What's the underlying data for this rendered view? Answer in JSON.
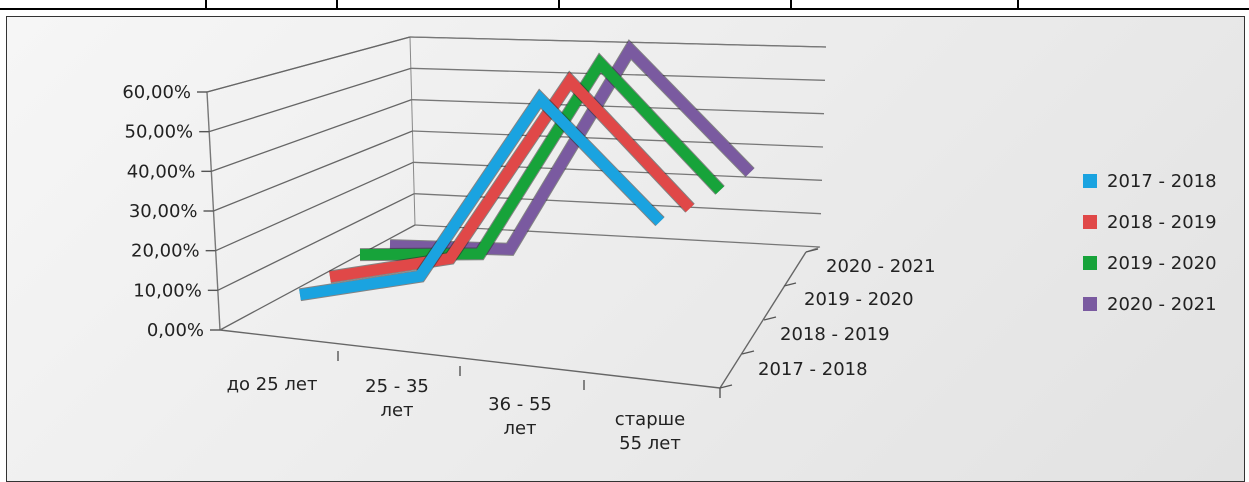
{
  "chart_data": {
    "type": "line",
    "subtype": "3d-line",
    "categories": [
      "до 25 лет",
      "25 - 35 лет",
      "36 - 55 лет",
      "старше 55 лет"
    ],
    "category_lines": [
      [
        "до 25 лет"
      ],
      [
        "25 - 35",
        "лет"
      ],
      [
        "36 - 55",
        "лет"
      ],
      [
        "старше",
        "55 лет"
      ]
    ],
    "depth_categories": [
      "2017 - 2018",
      "2018 - 2019",
      "2019 - 2020",
      "2020 - 2021"
    ],
    "y_ticks": [
      "0,00%",
      "10,00%",
      "20,00%",
      "30,00%",
      "40,00%",
      "50,00%",
      "60,00%"
    ],
    "ylim": [
      0,
      60
    ],
    "series": [
      {
        "name": "2017 - 2018",
        "color": "#1aa3e0",
        "values": [
          3,
          9,
          51,
          25
        ]
      },
      {
        "name": "2018 - 2019",
        "color": "#e04848",
        "values": [
          5,
          11,
          53,
          26
        ]
      },
      {
        "name": "2019 - 2020",
        "color": "#17a33a",
        "values": [
          8,
          10,
          55,
          28
        ]
      },
      {
        "name": "2020 - 2021",
        "color": "#7a5aa0",
        "values": [
          8,
          9,
          56,
          30
        ]
      }
    ],
    "legend_position": "right",
    "grid": true
  }
}
